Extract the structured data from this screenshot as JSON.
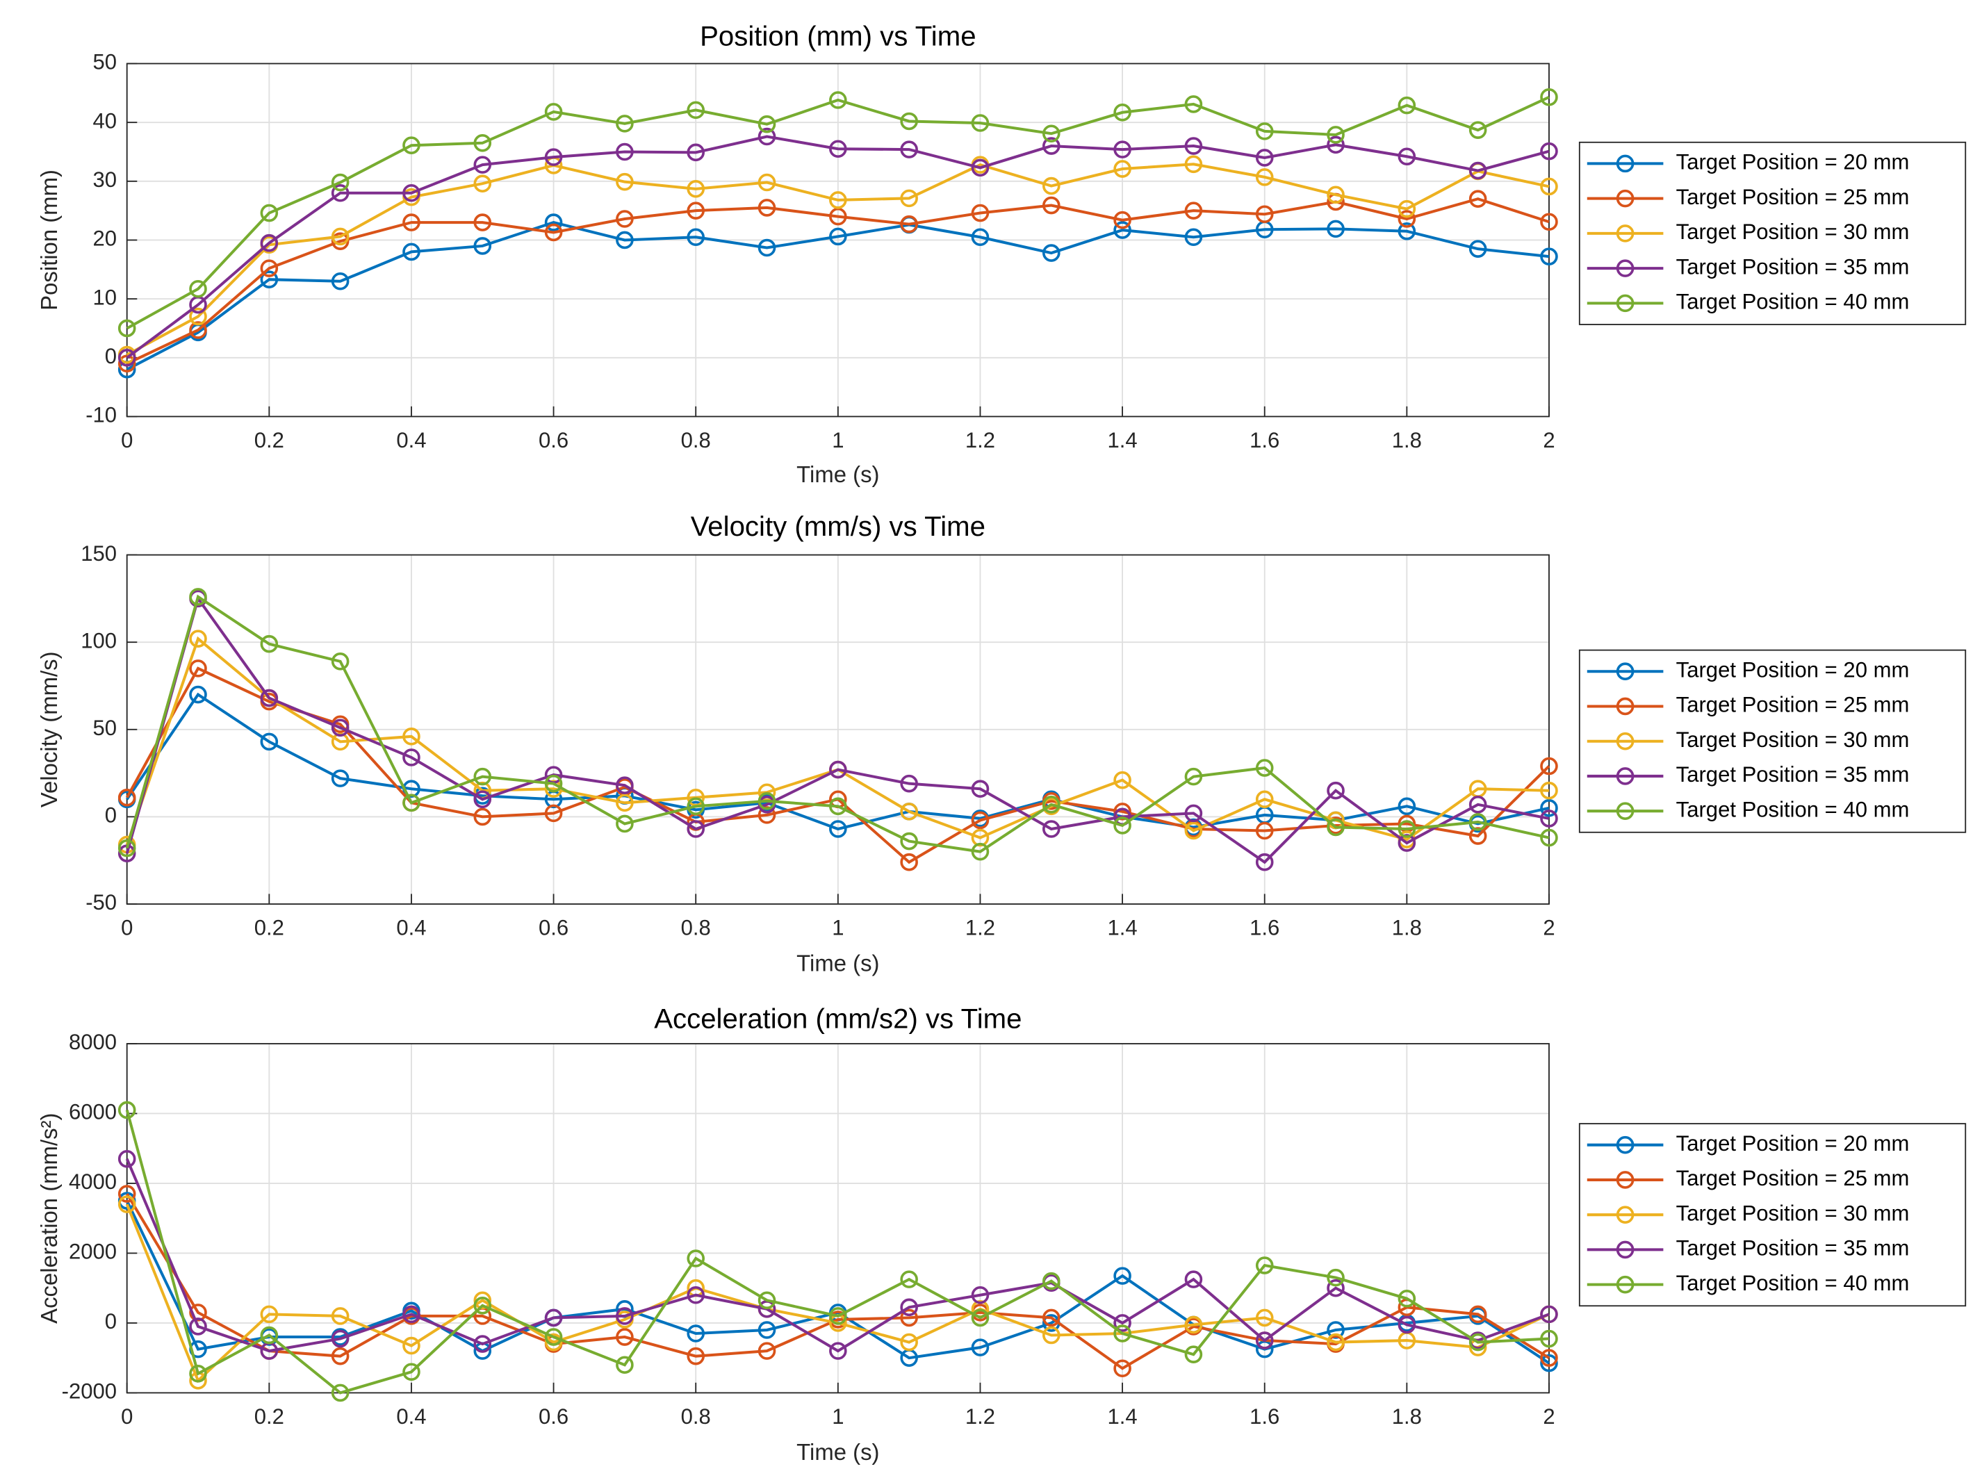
{
  "chart_data": [
    {
      "type": "line",
      "title": "Position (mm) vs Time",
      "xlabel": "Time (s)",
      "ylabel": "Position (mm)",
      "x": [
        0,
        0.1,
        0.2,
        0.3,
        0.4,
        0.5,
        0.6,
        0.7,
        0.8,
        0.9,
        1,
        1.1,
        1.2,
        1.3,
        1.4,
        1.5,
        1.6,
        1.7,
        1.8,
        1.9,
        2
      ],
      "xlim": [
        0,
        2
      ],
      "xticks": [
        0,
        0.2,
        0.4,
        0.6,
        0.8,
        1,
        1.2,
        1.4,
        1.6,
        1.8,
        2
      ],
      "ylim": [
        -10,
        50
      ],
      "yticks": [
        -10,
        0,
        10,
        20,
        30,
        40,
        50
      ],
      "grid": true,
      "legend": "outside-right",
      "series": [
        {
          "name": "Target Position = 20 mm",
          "color": "#0072BD",
          "values": [
            -2,
            4.3,
            13.3,
            13,
            18,
            19,
            23,
            20,
            20.5,
            18.7,
            20.6,
            22.6,
            20.5,
            17.8,
            21.7,
            20.5,
            21.8,
            21.9,
            21.5,
            18.5,
            17.2
          ]
        },
        {
          "name": "Target Position = 25 mm",
          "color": "#D95319",
          "values": [
            -1,
            4.7,
            15.2,
            19.8,
            23,
            23,
            21.3,
            23.6,
            25,
            25.5,
            24,
            22.7,
            24.6,
            25.9,
            23.4,
            25,
            24.4,
            26.5,
            23.6,
            27,
            23.1
          ]
        },
        {
          "name": "Target Position = 30 mm",
          "color": "#EDB120",
          "values": [
            0.5,
            7,
            19.2,
            20.6,
            27.3,
            29.6,
            32.7,
            29.9,
            28.7,
            29.8,
            26.8,
            27.1,
            32.8,
            29.2,
            32.1,
            32.9,
            30.7,
            27.7,
            25.3,
            31.7,
            29.1
          ]
        },
        {
          "name": "Target Position = 35 mm",
          "color": "#7E2F8E",
          "values": [
            0,
            9,
            19.5,
            28,
            28,
            32.8,
            34.1,
            35,
            34.9,
            37.6,
            35.5,
            35.4,
            32.3,
            36,
            35.4,
            36,
            34,
            36.2,
            34.2,
            31.8,
            35.1
          ]
        },
        {
          "name": "Target Position = 40 mm",
          "color": "#77AC30",
          "values": [
            5,
            11.7,
            24.6,
            29.8,
            36.1,
            36.5,
            41.8,
            39.8,
            42.1,
            39.7,
            43.8,
            40.2,
            39.9,
            38.1,
            41.7,
            43.1,
            38.5,
            37.9,
            42.9,
            38.7,
            44.3
          ]
        }
      ]
    },
    {
      "type": "line",
      "title": "Velocity (mm/s) vs Time",
      "xlabel": "Time (s)",
      "ylabel": "Velocity (mm/s)",
      "x": [
        0,
        0.1,
        0.2,
        0.3,
        0.4,
        0.5,
        0.6,
        0.7,
        0.8,
        0.9,
        1,
        1.1,
        1.2,
        1.3,
        1.4,
        1.5,
        1.6,
        1.7,
        1.8,
        1.9,
        2
      ],
      "xlim": [
        0,
        2
      ],
      "xticks": [
        0,
        0.2,
        0.4,
        0.6,
        0.8,
        1,
        1.2,
        1.4,
        1.6,
        1.8,
        2
      ],
      "ylim": [
        -50,
        150
      ],
      "yticks": [
        -50,
        0,
        50,
        100,
        150
      ],
      "grid": true,
      "legend": "outside-right",
      "series": [
        {
          "name": "Target Position = 20 mm",
          "color": "#0072BD",
          "values": [
            10,
            70,
            43,
            22,
            16,
            12,
            10,
            12,
            4,
            8,
            -7,
            3,
            -1,
            10,
            0,
            -6,
            1,
            -2,
            6,
            -4,
            5
          ]
        },
        {
          "name": "Target Position = 25 mm",
          "color": "#D95319",
          "values": [
            11,
            85,
            66,
            53,
            8,
            0,
            2,
            17,
            -3,
            1,
            10,
            -26,
            -2,
            9,
            3,
            -7,
            -8,
            -5,
            -4,
            -11,
            29
          ]
        },
        {
          "name": "Target Position = 30 mm",
          "color": "#EDB120",
          "values": [
            -16,
            102,
            68,
            43,
            46,
            15,
            16,
            8,
            11,
            14,
            27,
            3,
            -12,
            6,
            21,
            -8,
            10,
            -2,
            -13,
            16,
            15
          ]
        },
        {
          "name": "Target Position = 35 mm",
          "color": "#7E2F8E",
          "values": [
            -21,
            125,
            68,
            51,
            34,
            10,
            24,
            18,
            -7,
            7,
            27,
            19,
            16,
            -7,
            0,
            2,
            -26,
            15,
            -15,
            7,
            -1
          ]
        },
        {
          "name": "Target Position = 40 mm",
          "color": "#77AC30",
          "values": [
            -18,
            126,
            99,
            89,
            8,
            23,
            19,
            -4,
            6,
            9,
            6,
            -14,
            -20,
            7,
            -5,
            23,
            28,
            -6,
            -7,
            -3,
            -12
          ]
        }
      ]
    },
    {
      "type": "line",
      "title": "Acceleration (mm/s2) vs Time",
      "xlabel": "Time (s)",
      "ylabel": "Acceleration (mm/s²)",
      "x": [
        0,
        0.1,
        0.2,
        0.3,
        0.4,
        0.5,
        0.6,
        0.7,
        0.8,
        0.9,
        1,
        1.1,
        1.2,
        1.3,
        1.4,
        1.5,
        1.6,
        1.7,
        1.8,
        1.9,
        2
      ],
      "xlim": [
        0,
        2
      ],
      "xticks": [
        0,
        0.2,
        0.4,
        0.6,
        0.8,
        1,
        1.2,
        1.4,
        1.6,
        1.8,
        2
      ],
      "ylim": [
        -2000,
        8000
      ],
      "yticks": [
        -2000,
        0,
        2000,
        4000,
        6000,
        8000
      ],
      "grid": true,
      "legend": "outside-right",
      "series": [
        {
          "name": "Target Position = 20 mm",
          "color": "#0072BD",
          "values": [
            3500,
            -750,
            -400,
            -400,
            350,
            -800,
            150,
            400,
            -300,
            -200,
            300,
            -1000,
            -700,
            0,
            1350,
            -50,
            -750,
            -200,
            0,
            200,
            -1150
          ]
        },
        {
          "name": "Target Position = 25 mm",
          "color": "#D95319",
          "values": [
            3700,
            300,
            -800,
            -950,
            200,
            200,
            -600,
            -400,
            -950,
            -800,
            100,
            150,
            300,
            150,
            -1300,
            -100,
            -500,
            -600,
            450,
            250,
            -1000
          ]
        },
        {
          "name": "Target Position = 30 mm",
          "color": "#EDB120",
          "values": [
            3400,
            -1650,
            250,
            200,
            -650,
            650,
            -550,
            100,
            1000,
            400,
            0,
            -550,
            400,
            -350,
            -300,
            -50,
            150,
            -550,
            -500,
            -700,
            250
          ]
        },
        {
          "name": "Target Position = 35 mm",
          "color": "#7E2F8E",
          "values": [
            4700,
            -100,
            -800,
            -450,
            250,
            -600,
            150,
            200,
            800,
            400,
            -800,
            450,
            800,
            1150,
            0,
            1250,
            -500,
            1000,
            -50,
            -500,
            250
          ]
        },
        {
          "name": "Target Position = 40 mm",
          "color": "#77AC30",
          "values": [
            6100,
            -1450,
            -350,
            -2000,
            -1400,
            500,
            -400,
            -1200,
            1850,
            650,
            200,
            1250,
            150,
            1200,
            -300,
            -900,
            1650,
            1300,
            700,
            -550,
            -450
          ]
        }
      ]
    }
  ]
}
